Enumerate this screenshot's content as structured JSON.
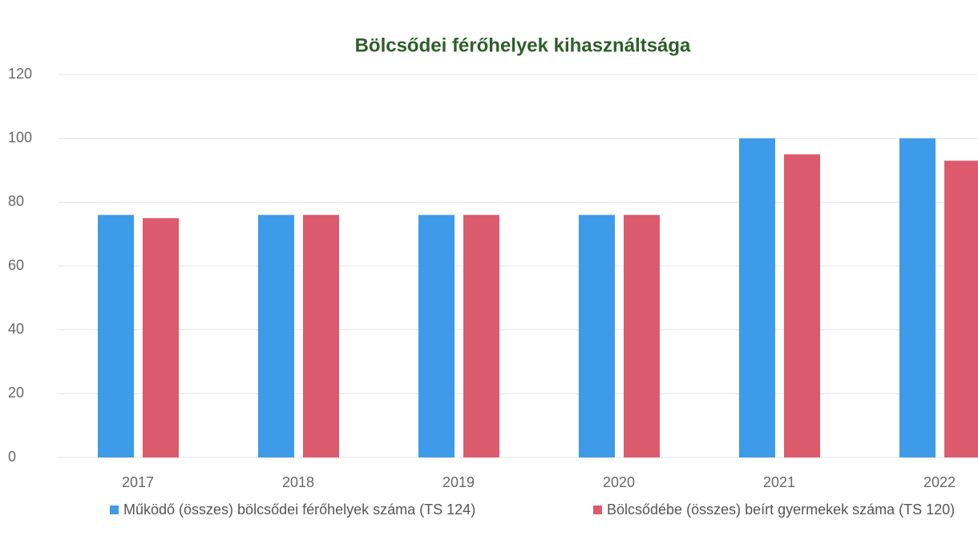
{
  "chart_data": {
    "type": "bar",
    "title": "Bölcsődei férőhelyek kihasználtsága",
    "categories": [
      "2017",
      "2018",
      "2019",
      "2020",
      "2021",
      "2022"
    ],
    "series": [
      {
        "name": "Működő (összes) bölcsődei férőhelyek száma (TS 124)",
        "color": "#3d9be9",
        "values": [
          76,
          76,
          76,
          76,
          100,
          100
        ]
      },
      {
        "name": "Bölcsődébe (összes) beírt gyermekek száma (TS 120)",
        "color": "#dc5a6e",
        "values": [
          75,
          76,
          76,
          76,
          95,
          93
        ]
      }
    ],
    "ylim": [
      0,
      120
    ],
    "yticks": [
      0,
      20,
      40,
      60,
      80,
      100,
      120
    ],
    "grid": true,
    "legend": "bottom"
  }
}
